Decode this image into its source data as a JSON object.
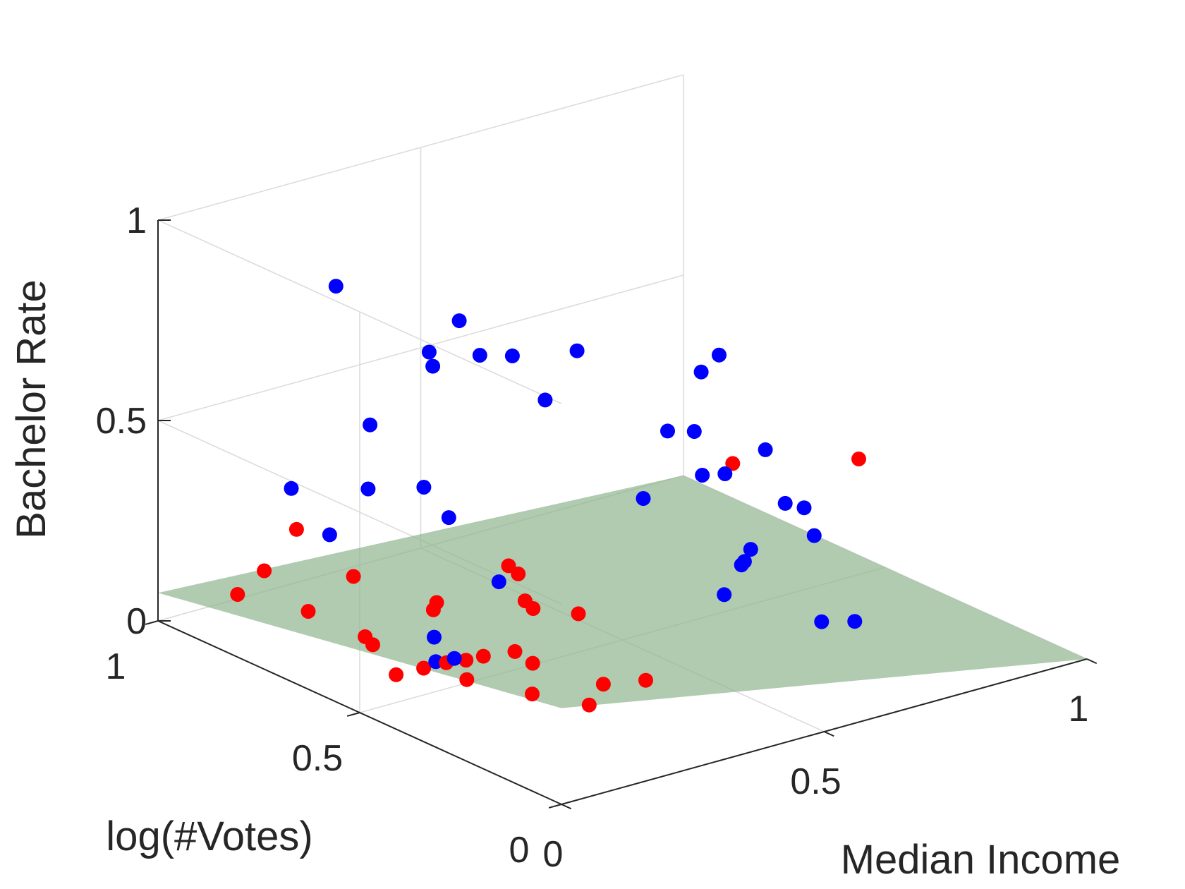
{
  "chart_data": {
    "type": "scatter",
    "projection": "3d",
    "xlabel": "Median Income",
    "ylabel": "log(#Votes)",
    "zlabel": "Bachelor Rate",
    "xlim": [
      0,
      1
    ],
    "ylim": [
      0,
      1
    ],
    "zlim": [
      0,
      1
    ],
    "xticks": [
      "0",
      "0.5",
      "1"
    ],
    "yticks": [
      "0",
      "0.5",
      "1"
    ],
    "zticks": [
      "0",
      "0.5",
      "1"
    ],
    "grid": true,
    "colors": {
      "class_a": "#0000ff",
      "class_b": "#ff0000",
      "plane": "#8fb58f",
      "axis": "#262626",
      "grid": "#dcdcdc"
    },
    "plane": {
      "corners": [
        {
          "x": 0,
          "y": 1,
          "z": 0.07
        },
        {
          "x": 0,
          "y": 0,
          "z": 0.24
        },
        {
          "x": 1,
          "y": 0,
          "z": 0.0
        },
        {
          "x": 1,
          "y": 1,
          "z": 0.0
        }
      ]
    },
    "series": [
      {
        "color": "#0000ff",
        "points": [
          {
            "x": 0.04,
            "y": 0.38,
            "z": 0.94
          },
          {
            "x": 0.105,
            "y": 0.39,
            "z": 0.99
          },
          {
            "x": 0.16,
            "y": 0.33,
            "z": 0.91
          },
          {
            "x": 0.07,
            "y": 0.41,
            "z": 0.88
          },
          {
            "x": 0.26,
            "y": 0.3,
            "z": 0.9
          },
          {
            "x": 0.23,
            "y": 0.34,
            "z": 0.77
          },
          {
            "x": 0.29,
            "y": 0.58,
            "z": 0.75
          },
          {
            "x": 0.07,
            "y": 0.65,
            "z": 0.97
          },
          {
            "x": 0.73,
            "y": 0.56,
            "z": 0.6
          },
          {
            "x": 0.55,
            "y": 0.37,
            "z": 0.71
          },
          {
            "x": 0.46,
            "y": 0.27,
            "z": 0.64
          },
          {
            "x": 0.44,
            "y": 0.31,
            "z": 0.63
          },
          {
            "x": 0.48,
            "y": 0.22,
            "z": 0.55
          },
          {
            "x": 0.34,
            "y": 0.24,
            "z": 0.53
          },
          {
            "x": 0.46,
            "y": 0.25,
            "z": 0.54
          },
          {
            "x": 0.58,
            "y": 0.25,
            "z": 0.56
          },
          {
            "x": 0.45,
            "y": 0.14,
            "z": 0.37
          },
          {
            "x": 0.46,
            "y": 0.13,
            "z": 0.41
          },
          {
            "x": 0.6,
            "y": 0.18,
            "z": 0.44
          },
          {
            "x": 0.55,
            "y": 0.09,
            "z": 0.43
          },
          {
            "x": 0.25,
            "y": 0.8,
            "z": 0.49
          },
          {
            "x": 0.3,
            "y": 0.67,
            "z": 0.3
          },
          {
            "x": 0.2,
            "y": 0.93,
            "z": 0.29
          },
          {
            "x": 0.3,
            "y": 0.87,
            "z": 0.28
          },
          {
            "x": 0.36,
            "y": 0.81,
            "z": 0.29
          },
          {
            "x": 0.25,
            "y": 0.9,
            "z": 0.17
          },
          {
            "x": 0.38,
            "y": 0.65,
            "z": 0.12
          },
          {
            "x": 0.54,
            "y": 0.3,
            "z": 0.19
          },
          {
            "x": 0.61,
            "y": 0.24,
            "z": 0.42
          },
          {
            "x": 0.64,
            "y": 0.38,
            "z": 0.2
          },
          {
            "x": 0.71,
            "y": 0.28,
            "z": 0.07
          },
          {
            "x": 0.75,
            "y": 0.25,
            "z": 0.07
          },
          {
            "x": 0.18,
            "y": 0.55,
            "z": 0.1
          },
          {
            "x": 0.16,
            "y": 0.52,
            "z": 0.06
          },
          {
            "x": 0.18,
            "y": 0.5,
            "z": 0.07
          }
        ]
      },
      {
        "color": "#ff0000",
        "points": [
          {
            "x": 0.75,
            "y": 0.24,
            "z": 0.48
          },
          {
            "x": 0.61,
            "y": 0.37,
            "z": 0.46
          },
          {
            "x": 0.11,
            "y": 0.8,
            "z": 0.28
          },
          {
            "x": 0.11,
            "y": 0.88,
            "z": 0.14
          },
          {
            "x": 0.18,
            "y": 0.75,
            "z": 0.16
          },
          {
            "x": 0.09,
            "y": 0.92,
            "z": 0.07
          },
          {
            "x": 0.14,
            "y": 0.81,
            "z": 0.06
          },
          {
            "x": 0.1,
            "y": 0.54,
            "z": 0.04
          },
          {
            "x": 0.11,
            "y": 0.63,
            "z": 0.09
          },
          {
            "x": 0.14,
            "y": 0.65,
            "z": 0.05
          },
          {
            "x": 0.16,
            "y": 0.55,
            "z": 0.03
          },
          {
            "x": 0.18,
            "y": 0.52,
            "z": 0.05
          },
          {
            "x": 0.22,
            "y": 0.48,
            "z": 0.07
          },
          {
            "x": 0.21,
            "y": 0.51,
            "z": 0.05
          },
          {
            "x": 0.24,
            "y": 0.63,
            "z": 0.11
          },
          {
            "x": 0.15,
            "y": 0.43,
            "z": 0.06
          },
          {
            "x": 0.19,
            "y": 0.32,
            "z": 0.06
          },
          {
            "x": 0.26,
            "y": 0.27,
            "z": 0.03
          },
          {
            "x": 0.34,
            "y": 0.55,
            "z": 0.2
          },
          {
            "x": 0.33,
            "y": 0.52,
            "z": 0.15
          },
          {
            "x": 0.33,
            "y": 0.5,
            "z": 0.14
          },
          {
            "x": 0.37,
            "y": 0.44,
            "z": 0.14
          },
          {
            "x": 0.36,
            "y": 0.6,
            "z": 0.19
          },
          {
            "x": 0.26,
            "y": 0.41,
            "z": 0.07
          },
          {
            "x": 0.36,
            "y": 0.26,
            "z": 0.06
          },
          {
            "x": 0.31,
            "y": 0.3,
            "z": 0.05
          },
          {
            "x": 0.2,
            "y": 0.57,
            "z": 0.17
          },
          {
            "x": 0.28,
            "y": 0.48,
            "z": 0.06
          }
        ]
      }
    ]
  }
}
